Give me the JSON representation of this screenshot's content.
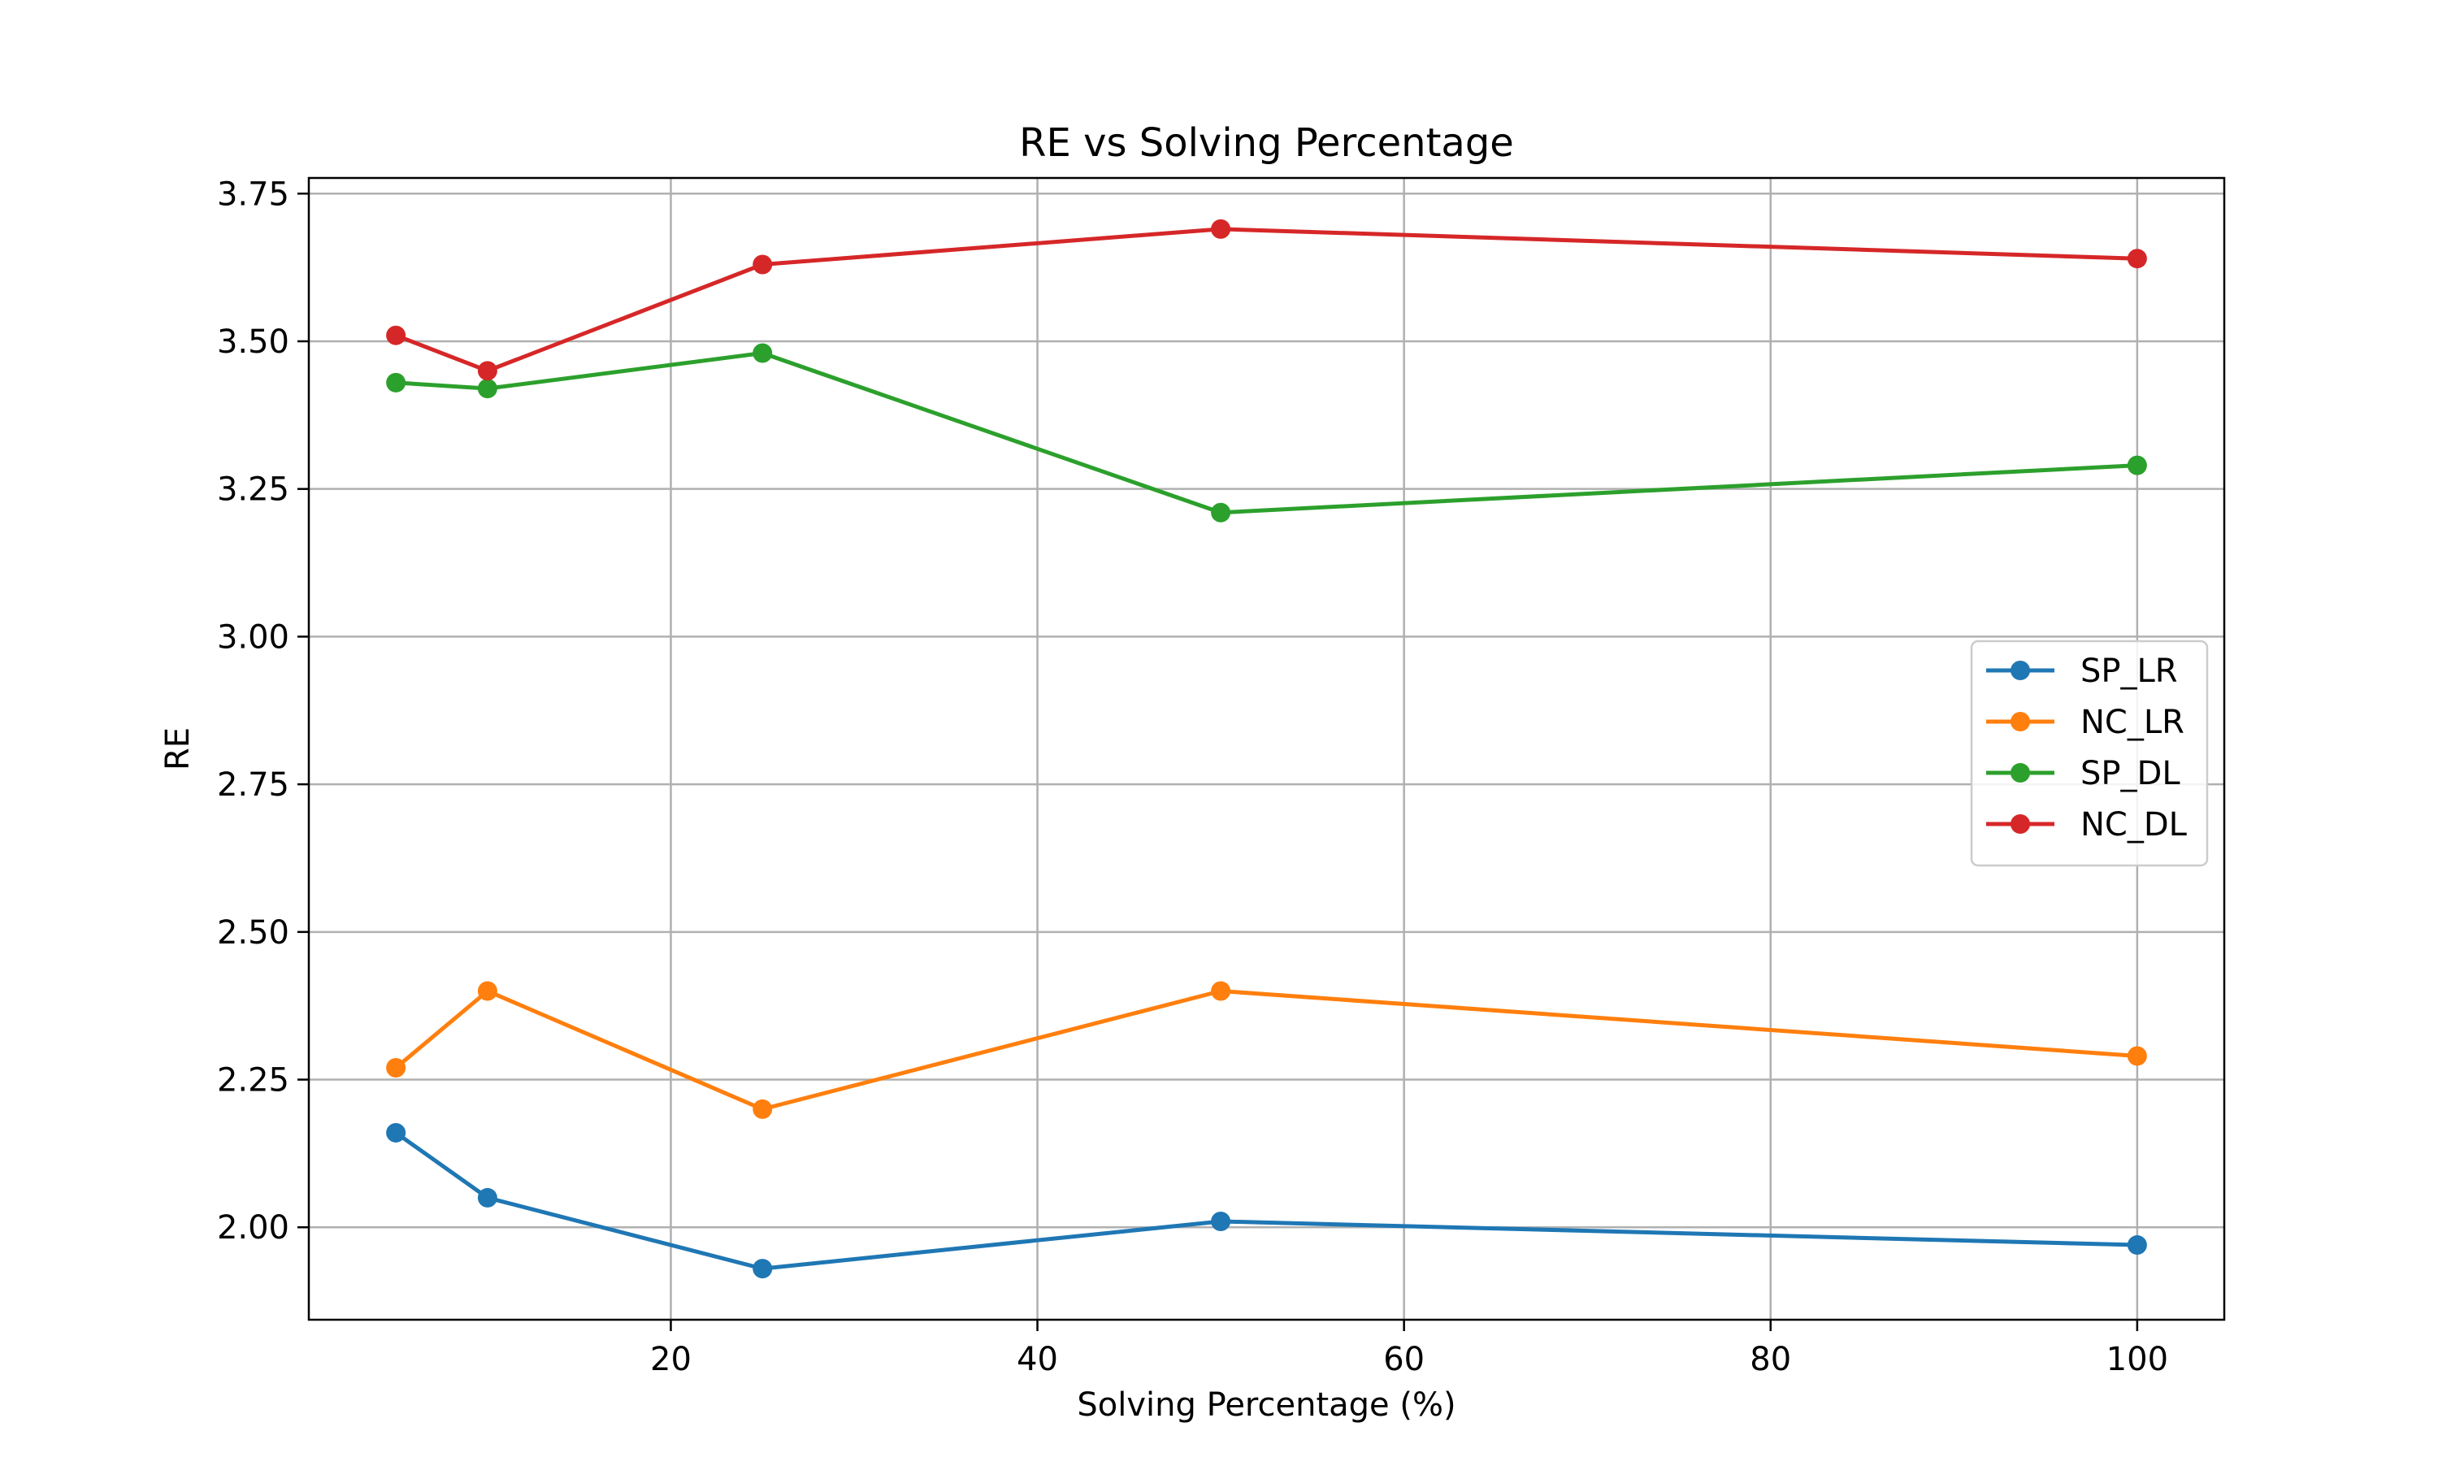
{
  "chart_data": {
    "type": "line",
    "title": "RE vs Solving Percentage",
    "xlabel": "Solving Percentage (%)",
    "ylabel": "RE",
    "x": [
      5,
      10,
      25,
      50,
      100
    ],
    "xlim": [
      0.25,
      104.75
    ],
    "ylim": [
      1.8435,
      3.7765
    ],
    "xticks": [
      20,
      40,
      60,
      80,
      100
    ],
    "yticks": [
      2.0,
      2.25,
      2.5,
      2.75,
      3.0,
      3.25,
      3.5,
      3.75
    ],
    "xtick_labels": [
      "20",
      "40",
      "60",
      "80",
      "100"
    ],
    "ytick_labels": [
      "2.00",
      "2.25",
      "2.50",
      "2.75",
      "3.00",
      "3.25",
      "3.50",
      "3.75"
    ],
    "grid": true,
    "legend_position": "center-right",
    "series": [
      {
        "name": "SP_LR",
        "color": "#1f77b4",
        "values": [
          2.16,
          2.05,
          1.93,
          2.01,
          1.97
        ]
      },
      {
        "name": "NC_LR",
        "color": "#ff7f0e",
        "values": [
          2.27,
          2.4,
          2.2,
          2.4,
          2.29
        ]
      },
      {
        "name": "SP_DL",
        "color": "#2ca02c",
        "values": [
          3.43,
          3.42,
          3.48,
          3.21,
          3.29
        ]
      },
      {
        "name": "NC_DL",
        "color": "#d62728",
        "values": [
          3.51,
          3.45,
          3.63,
          3.69,
          3.64
        ]
      }
    ]
  }
}
